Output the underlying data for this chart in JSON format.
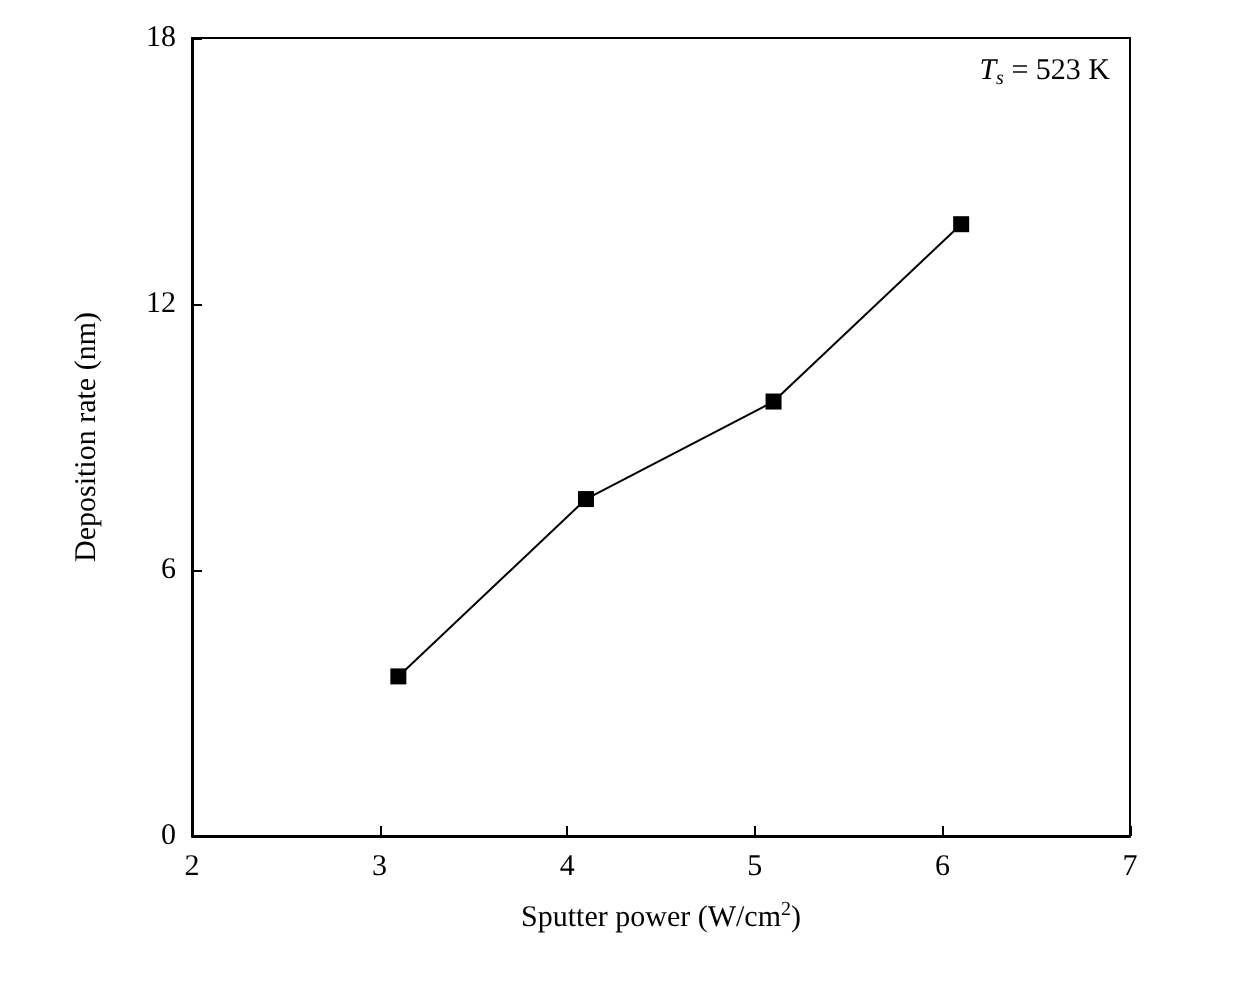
{
  "chart_data": {
    "type": "line",
    "xlabel": "Sputter power (W/cm$^{2}$)",
    "ylabel": "Deposition rate (nm)",
    "annotations": [
      "T$_{s}$ = 523 K"
    ],
    "x": [
      3.1,
      4.1,
      5.1,
      6.1
    ],
    "series": [
      {
        "color": "#000000",
        "values": [
          3.6,
          7.6,
          9.8,
          13.8
        ]
      }
    ],
    "xlim": [
      2,
      7
    ],
    "xticks": [
      2,
      3,
      4,
      5,
      6,
      7
    ],
    "ylim": [
      0,
      18
    ],
    "yticks": [
      0,
      6,
      12,
      18
    ],
    "marker": "square",
    "line_style": "solid"
  }
}
